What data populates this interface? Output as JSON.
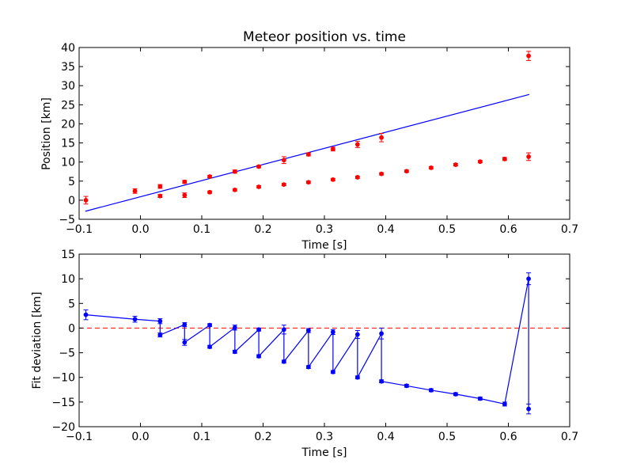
{
  "chart_data": [
    {
      "type": "scatter",
      "title": "Meteor position vs. time",
      "xlabel": "Time [s]",
      "ylabel": "Position [km]",
      "xlim": [
        -0.1,
        0.7
      ],
      "ylim": [
        -5,
        40
      ],
      "xticks": [
        "−0.1",
        "0.0",
        "0.1",
        "0.2",
        "0.3",
        "0.4",
        "0.5",
        "0.6",
        "0.7"
      ],
      "yticks": [
        "−5",
        "0",
        "5",
        "10",
        "15",
        "20",
        "25",
        "30",
        "35",
        "40"
      ],
      "grid": false,
      "fit_line": {
        "color": "#0000ff",
        "x": [
          -0.09,
          0.634
        ],
        "y": [
          -2.9,
          27.7
        ]
      },
      "series": [
        {
          "color": "#ff0000",
          "points": [
            {
              "x": -0.089,
              "y": 0.0,
              "err": 1.0
            },
            {
              "x": -0.009,
              "y": 2.4,
              "err": 0.6
            },
            {
              "x": 0.032,
              "y": 3.6,
              "err": 0.5
            },
            {
              "x": 0.032,
              "y": 1.1,
              "err": 0.4
            },
            {
              "x": 0.072,
              "y": 4.8,
              "err": 0.4
            },
            {
              "x": 0.072,
              "y": 1.3,
              "err": 0.6
            },
            {
              "x": 0.113,
              "y": 6.2,
              "err": 0.3
            },
            {
              "x": 0.113,
              "y": 2.1,
              "err": 0.3
            },
            {
              "x": 0.154,
              "y": 7.5,
              "err": 0.4
            },
            {
              "x": 0.154,
              "y": 2.7,
              "err": 0.3
            },
            {
              "x": 0.193,
              "y": 8.8,
              "err": 0.3
            },
            {
              "x": 0.193,
              "y": 3.5,
              "err": 0.3
            },
            {
              "x": 0.234,
              "y": 10.5,
              "err": 0.9
            },
            {
              "x": 0.234,
              "y": 4.1,
              "err": 0.3
            },
            {
              "x": 0.274,
              "y": 12.0,
              "err": 0.4
            },
            {
              "x": 0.274,
              "y": 4.7,
              "err": 0.3
            },
            {
              "x": 0.314,
              "y": 13.4,
              "err": 0.5
            },
            {
              "x": 0.314,
              "y": 5.4,
              "err": 0.3
            },
            {
              "x": 0.354,
              "y": 14.6,
              "err": 0.8
            },
            {
              "x": 0.354,
              "y": 6.0,
              "err": 0.3
            },
            {
              "x": 0.393,
              "y": 16.4,
              "err": 1.1
            },
            {
              "x": 0.393,
              "y": 6.9,
              "err": 0.3
            },
            {
              "x": 0.434,
              "y": 7.6,
              "err": 0.3
            },
            {
              "x": 0.474,
              "y": 8.5,
              "err": 0.3
            },
            {
              "x": 0.514,
              "y": 9.3,
              "err": 0.3
            },
            {
              "x": 0.554,
              "y": 10.1,
              "err": 0.3
            },
            {
              "x": 0.594,
              "y": 10.8,
              "err": 0.4
            },
            {
              "x": 0.633,
              "y": 37.8,
              "err": 1.2
            },
            {
              "x": 0.633,
              "y": 11.4,
              "err": 1.0
            }
          ]
        }
      ]
    },
    {
      "type": "line",
      "title": "",
      "xlabel": "Time [s]",
      "ylabel": "Fit deviation [km]",
      "xlim": [
        -0.1,
        0.7
      ],
      "ylim": [
        -20,
        15
      ],
      "xticks": [
        "−0.1",
        "0.0",
        "0.1",
        "0.2",
        "0.3",
        "0.4",
        "0.5",
        "0.6",
        "0.7"
      ],
      "yticks": [
        "−20",
        "−15",
        "−10",
        "−5",
        "0",
        "5",
        "10",
        "15"
      ],
      "grid": false,
      "zero_line": {
        "y": 0,
        "color": "#ff0000",
        "style": "dashed"
      },
      "series": [
        {
          "color": "#0000ff",
          "points": [
            {
              "x": -0.089,
              "y": 2.7,
              "err": 1.0
            },
            {
              "x": -0.009,
              "y": 1.8,
              "err": 0.6
            },
            {
              "x": 0.032,
              "y": 1.4,
              "err": 0.5
            },
            {
              "x": 0.032,
              "y": -1.4,
              "err": 0.4
            },
            {
              "x": 0.072,
              "y": 0.7,
              "err": 0.4
            },
            {
              "x": 0.072,
              "y": -2.9,
              "err": 0.6
            },
            {
              "x": 0.113,
              "y": 0.6,
              "err": 0.3
            },
            {
              "x": 0.113,
              "y": -3.8,
              "err": 0.3
            },
            {
              "x": 0.154,
              "y": 0.1,
              "err": 0.5
            },
            {
              "x": 0.154,
              "y": -4.8,
              "err": 0.3
            },
            {
              "x": 0.193,
              "y": -0.3,
              "err": 0.3
            },
            {
              "x": 0.193,
              "y": -5.7,
              "err": 0.3
            },
            {
              "x": 0.234,
              "y": -0.3,
              "err": 0.9
            },
            {
              "x": 0.234,
              "y": -6.8,
              "err": 0.3
            },
            {
              "x": 0.274,
              "y": -0.5,
              "err": 0.4
            },
            {
              "x": 0.274,
              "y": -7.9,
              "err": 0.3
            },
            {
              "x": 0.314,
              "y": -0.8,
              "err": 0.5
            },
            {
              "x": 0.314,
              "y": -8.9,
              "err": 0.3
            },
            {
              "x": 0.354,
              "y": -1.3,
              "err": 0.8
            },
            {
              "x": 0.354,
              "y": -10.0,
              "err": 0.3
            },
            {
              "x": 0.393,
              "y": -1.1,
              "err": 1.1
            },
            {
              "x": 0.393,
              "y": -10.8,
              "err": 0.3
            },
            {
              "x": 0.434,
              "y": -11.7,
              "err": 0.3
            },
            {
              "x": 0.474,
              "y": -12.6,
              "err": 0.3
            },
            {
              "x": 0.514,
              "y": -13.4,
              "err": 0.3
            },
            {
              "x": 0.554,
              "y": -14.3,
              "err": 0.3
            },
            {
              "x": 0.594,
              "y": -15.4,
              "err": 0.4
            },
            {
              "x": 0.633,
              "y": 10.0,
              "err": 1.2
            },
            {
              "x": 0.633,
              "y": -16.4,
              "err": 1.0
            }
          ]
        }
      ]
    }
  ]
}
